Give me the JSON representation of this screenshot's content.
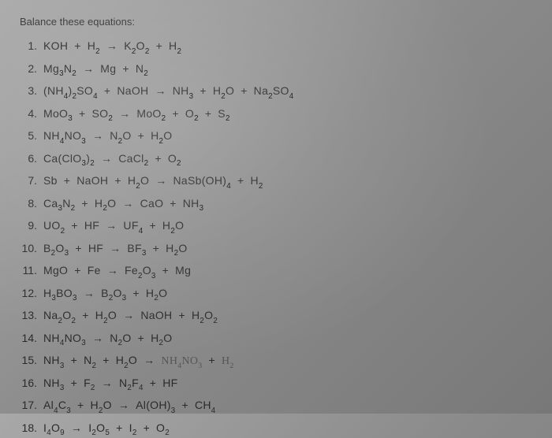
{
  "title": "Balance these equations:",
  "equations": [
    {
      "n": "1.",
      "parts": [
        "KOH",
        "+",
        "H₂",
        "→",
        "K₂O₂",
        "+",
        "H₂"
      ]
    },
    {
      "n": "2.",
      "parts": [
        "Mg₃N₂",
        "→",
        "Mg",
        "+",
        "N₂"
      ]
    },
    {
      "n": "3.",
      "parts": [
        "(NH₄)₂SO₄",
        "+",
        "NaOH",
        "→",
        "NH₃",
        "+",
        "H₂O",
        "+",
        "Na₂SO₄"
      ]
    },
    {
      "n": "4.",
      "parts": [
        "MoO₃",
        "+",
        "SO₂",
        "→",
        "MoO₂",
        "+",
        "O₂",
        "+",
        "S₂"
      ]
    },
    {
      "n": "5.",
      "parts": [
        "NH₄NO₃",
        "→",
        "N₂O",
        "+",
        "H₂O"
      ]
    },
    {
      "n": "6.",
      "parts": [
        "Ca(ClO₃)₂",
        "→",
        "CaCl₂",
        "+",
        "O₂"
      ]
    },
    {
      "n": "7.",
      "parts": [
        "Sb",
        "+",
        "NaOH",
        "+",
        "H₂O",
        "→",
        "NaSb(OH)₄",
        "+",
        "H₂"
      ]
    },
    {
      "n": "8.",
      "parts": [
        "Ca₃N₂",
        "+",
        "H₂O",
        "→",
        "CaO",
        "+",
        "NH₃"
      ]
    },
    {
      "n": "9.",
      "parts": [
        "UO₂",
        "+",
        "HF",
        "→",
        "UF₄",
        "+",
        "H₂O"
      ]
    },
    {
      "n": "10.",
      "parts": [
        "B₂O₃",
        "+",
        "HF",
        "→",
        "BF₃",
        "+",
        "H₂O"
      ]
    },
    {
      "n": "11.",
      "parts": [
        "MgO",
        "+",
        "Fe",
        "→",
        "Fe₂O₃",
        "+",
        "Mg"
      ]
    },
    {
      "n": "12.",
      "parts": [
        "H₃BO₃",
        "→",
        "B₂O₃",
        "+",
        "H₂O"
      ]
    },
    {
      "n": "13.",
      "parts": [
        "Na₂O₂",
        "+",
        "H₂O",
        "→",
        "NaOH",
        "+",
        "H₂O₂"
      ]
    },
    {
      "n": "14.",
      "parts": [
        "NH₄NO₃",
        "→",
        "N₂O",
        "+",
        "H₂O"
      ]
    },
    {
      "n": "15.",
      "parts": [
        "NH₃",
        "+",
        "N₂",
        "+",
        "H₂O",
        "→",
        "NH₄NO₃",
        "+",
        "H₂"
      ],
      "handwritten": true
    },
    {
      "n": "16.",
      "parts": [
        "NH₃",
        "+",
        "F₂",
        "→",
        "N₂F₄",
        "+",
        "HF"
      ]
    },
    {
      "n": "17.",
      "parts": [
        "Al₄C₃",
        "+",
        "H₂O",
        "→",
        "Al(OH)₃",
        "+",
        "CH₄"
      ]
    },
    {
      "n": "18.",
      "parts": [
        "I₄O₉",
        "→",
        "I₂O₅",
        "+",
        "I₂",
        "+",
        "O₂"
      ]
    }
  ],
  "colors": {
    "text": "#2a2a2a",
    "background": "#909090"
  }
}
